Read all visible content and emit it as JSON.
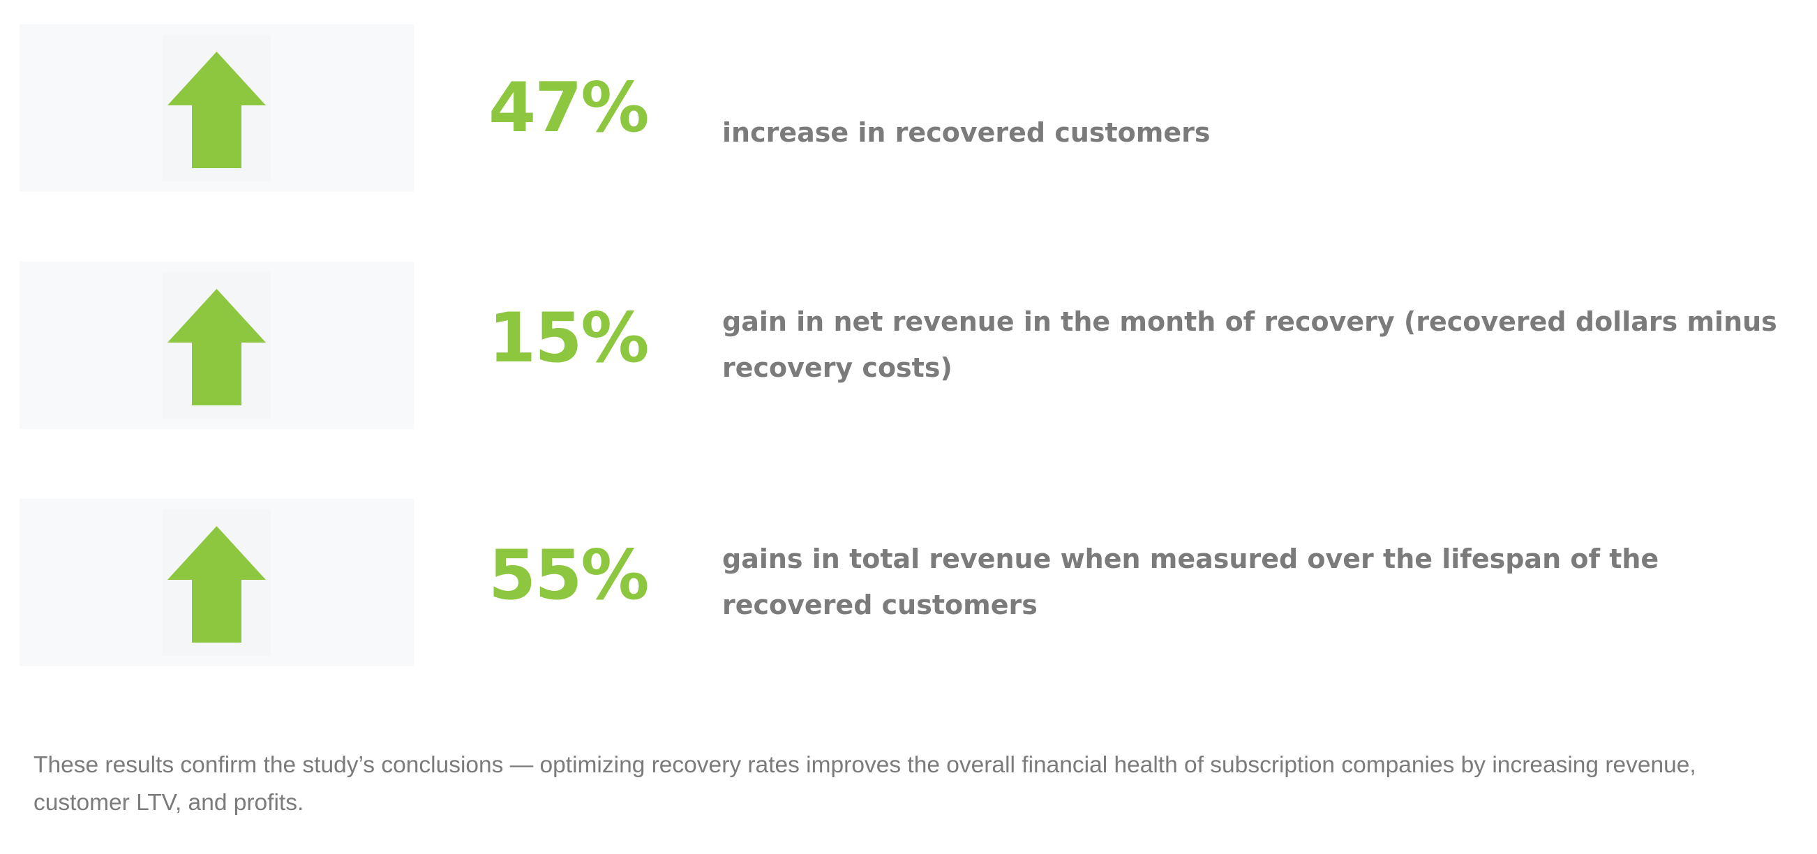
{
  "colors": {
    "accent": "#8dc63f",
    "text": "#7b7b7b",
    "panel": "#f8f9fa"
  },
  "stats": [
    {
      "icon": "arrow-up-icon",
      "value": "47%",
      "description": "increase in recovered customers"
    },
    {
      "icon": "arrow-up-icon",
      "value": "15%",
      "description": "gain in net revenue in the month of recovery (recovered dollars minus recovery costs)"
    },
    {
      "icon": "arrow-up-icon",
      "value": "55%",
      "description": "gains in total revenue when measured over the lifespan of the recovered customers"
    }
  ],
  "footer": {
    "text": "These results confirm the study’s conclusions — optimizing recovery rates improves the overall financial health of subscription companies by increasing revenue, customer LTV, and profits."
  }
}
